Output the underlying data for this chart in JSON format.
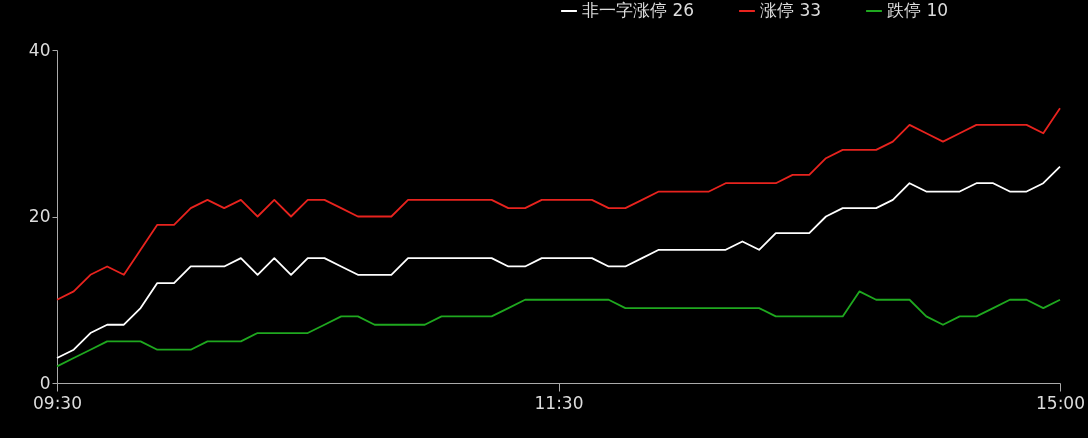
{
  "chart_data": {
    "type": "line",
    "legend": "top right",
    "grid": false,
    "marker": "none",
    "line_style": "solid",
    "categories": [
      "09:30",
      null,
      null,
      null,
      null,
      null,
      null,
      null,
      null,
      null,
      null,
      null,
      null,
      null,
      null,
      null,
      null,
      null,
      null,
      null,
      null,
      null,
      null,
      null,
      null,
      null,
      null,
      null,
      null,
      null,
      "11:30",
      null,
      null,
      null,
      null,
      null,
      null,
      null,
      null,
      null,
      null,
      null,
      null,
      null,
      null,
      null,
      null,
      null,
      null,
      null,
      null,
      null,
      null,
      null,
      null,
      null,
      null,
      null,
      null,
      null,
      "15:00"
    ],
    "ylim": [
      0,
      40
    ],
    "yticks": [
      0,
      20,
      40
    ],
    "series": [
      {
        "name": "非一字涨停 26",
        "color": "#ffffff",
        "values": [
          3,
          4,
          6,
          7,
          7,
          9,
          12,
          12,
          14,
          14,
          14,
          15,
          13,
          15,
          13,
          15,
          15,
          14,
          13,
          13,
          13,
          15,
          15,
          15,
          15,
          15,
          15,
          14,
          14,
          15,
          15,
          15,
          15,
          14,
          14,
          15,
          16,
          16,
          16,
          16,
          16,
          17,
          16,
          18,
          18,
          18,
          20,
          21,
          21,
          21,
          22,
          24,
          23,
          23,
          23,
          24,
          24,
          23,
          23,
          24,
          26
        ]
      },
      {
        "name": "涨停 33",
        "color": "#e8231e",
        "values": [
          10,
          11,
          13,
          14,
          13,
          16,
          19,
          19,
          21,
          22,
          21,
          22,
          20,
          22,
          20,
          22,
          22,
          21,
          20,
          20,
          20,
          22,
          22,
          22,
          22,
          22,
          22,
          21,
          21,
          22,
          22,
          22,
          22,
          21,
          21,
          22,
          23,
          23,
          23,
          23,
          24,
          24,
          24,
          24,
          25,
          25,
          27,
          28,
          28,
          28,
          29,
          31,
          30,
          29,
          30,
          31,
          31,
          31,
          31,
          30,
          33
        ]
      },
      {
        "name": "跌停 10",
        "color": "#1fa81f",
        "values": [
          2,
          3,
          4,
          5,
          5,
          5,
          4,
          4,
          4,
          5,
          5,
          5,
          6,
          6,
          6,
          6,
          7,
          8,
          8,
          7,
          7,
          7,
          7,
          8,
          8,
          8,
          8,
          9,
          10,
          10,
          10,
          10,
          10,
          10,
          9,
          9,
          9,
          9,
          9,
          9,
          9,
          9,
          9,
          8,
          8,
          8,
          8,
          8,
          11,
          10,
          10,
          10,
          8,
          7,
          8,
          8,
          9,
          10,
          10,
          9,
          10
        ]
      }
    ]
  }
}
